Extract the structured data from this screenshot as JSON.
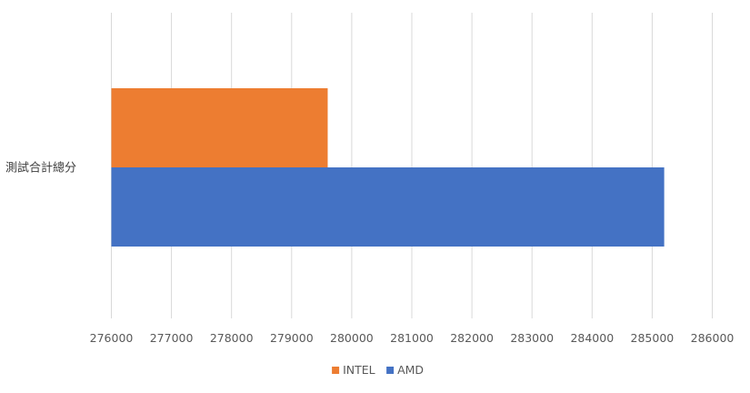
{
  "chart_data": {
    "type": "bar",
    "orientation": "horizontal",
    "categories": [
      "測試合計總分"
    ],
    "series": [
      {
        "name": "INTEL",
        "values": [
          279600
        ],
        "color": "#ED7D31"
      },
      {
        "name": "AMD",
        "values": [
          285200
        ],
        "color": "#4472C4"
      }
    ],
    "xlim": [
      276000,
      286000
    ],
    "xticks": [
      "276000",
      "277000",
      "278000",
      "279000",
      "280000",
      "281000",
      "282000",
      "283000",
      "284000",
      "285000",
      "286000"
    ],
    "title": "",
    "xlabel": "",
    "ylabel": "",
    "grid": "vertical",
    "gridline_color": "#D9D9D9",
    "legend_position": "bottom"
  }
}
